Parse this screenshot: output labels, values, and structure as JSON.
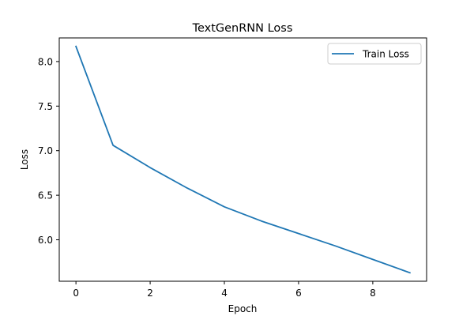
{
  "chart_data": {
    "type": "line",
    "title": "TextGenRNN Loss",
    "xlabel": "Epoch",
    "ylabel": "Loss",
    "x": [
      0,
      1,
      2,
      3,
      4,
      5,
      6,
      7,
      8,
      9
    ],
    "series": [
      {
        "name": "Train Loss",
        "values": [
          8.17,
          7.06,
          6.81,
          6.58,
          6.37,
          6.21,
          6.07,
          5.93,
          5.78,
          5.63
        ],
        "color": "#1f77b4"
      }
    ],
    "xlim": [
      -0.45,
      9.45
    ],
    "ylim": [
      5.535,
      8.265
    ],
    "xticks": [
      0,
      2,
      4,
      6,
      8
    ],
    "yticks": [
      6.0,
      6.5,
      7.0,
      7.5,
      8.0
    ],
    "ytick_labels": [
      "6.0",
      "6.5",
      "7.0",
      "7.5",
      "8.0"
    ],
    "grid": false,
    "legend_position": "top-right"
  }
}
